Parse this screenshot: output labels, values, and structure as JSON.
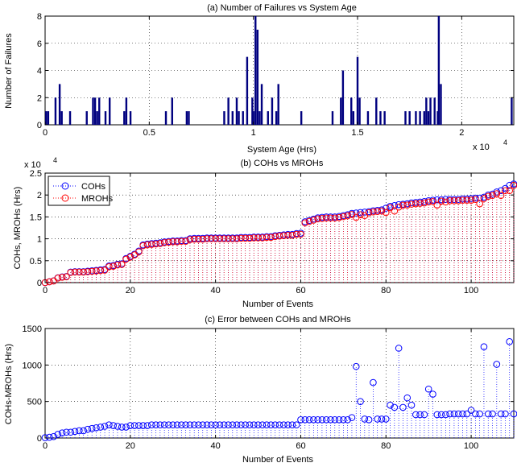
{
  "chart_data": [
    {
      "type": "bar",
      "title": "(a) Number of Failures vs System Age",
      "xlabel": "System Age (Hrs)",
      "ylabel": "Number of Failures",
      "xlim": [
        0,
        22500
      ],
      "ylim": [
        0,
        8
      ],
      "x_multiplier": "x 10",
      "x_multiplier_exp": "4",
      "xticks": [
        0,
        5000,
        10000,
        15000,
        20000
      ],
      "xtick_labels": [
        "0",
        "0.5",
        "1",
        "1.5",
        "2"
      ],
      "yticks": [
        0,
        2,
        4,
        6,
        8
      ],
      "ytick_labels": [
        "0",
        "2",
        "4",
        "6",
        "8"
      ],
      "grid": true,
      "color": "#00007f",
      "x": [
        50,
        150,
        500,
        700,
        800,
        1200,
        2000,
        2300,
        2400,
        2500,
        2600,
        2900,
        3100,
        3800,
        3900,
        4100,
        5800,
        6100,
        6800,
        6900,
        8600,
        8800,
        9000,
        9200,
        9300,
        9500,
        9700,
        9950,
        10000,
        10100,
        10200,
        10300,
        10400,
        10700,
        10900,
        11100,
        11200,
        12300,
        13800,
        14200,
        14300,
        14700,
        14800,
        15000,
        15100,
        15500,
        15900,
        16100,
        16300,
        17300,
        17500,
        17800,
        18000,
        18200,
        18300,
        18400,
        18500,
        18700,
        18850,
        18900,
        19000,
        22400
      ],
      "y": [
        1,
        1,
        2,
        3,
        1,
        1,
        1,
        2,
        2,
        1,
        2,
        1,
        2,
        1,
        2,
        1,
        1,
        2,
        1,
        1,
        1,
        2,
        1,
        2,
        1,
        1,
        5,
        2,
        1,
        8,
        7,
        1,
        3,
        1,
        2,
        1,
        3,
        1,
        1,
        2,
        4,
        2,
        1,
        5,
        2,
        1,
        2,
        1,
        1,
        1,
        1,
        1,
        1,
        1,
        2,
        1,
        2,
        2,
        1,
        8,
        3,
        2
      ]
    },
    {
      "type": "scatter",
      "title": "(b) COHs vs MROHs",
      "xlabel": "Number of Events",
      "ylabel": "COHs, MROHs (Hrs)",
      "xlim": [
        0,
        110
      ],
      "ylim": [
        0,
        25000
      ],
      "y_multiplier": "x 10",
      "y_multiplier_exp": "4",
      "xticks": [
        0,
        20,
        40,
        60,
        80,
        100
      ],
      "xtick_labels": [
        "0",
        "20",
        "40",
        "60",
        "80",
        "100"
      ],
      "yticks": [
        0,
        5000,
        10000,
        15000,
        20000,
        25000
      ],
      "ytick_labels": [
        "0",
        "0.5",
        "1",
        "1.5",
        "2",
        "2.5"
      ],
      "grid": true,
      "legend_position": "top-left",
      "series": [
        {
          "name": "COHs",
          "color": "#0000ff",
          "values": [
            0,
            200,
            400,
            1100,
            1300,
            1400,
            2400,
            2500,
            2500,
            2500,
            2600,
            2700,
            2800,
            2900,
            3000,
            3800,
            3900,
            4200,
            4300,
            5500,
            6000,
            6500,
            7200,
            8600,
            8800,
            8900,
            9000,
            9100,
            9300,
            9400,
            9500,
            9500,
            9600,
            9600,
            10000,
            10100,
            10100,
            10100,
            10200,
            10200,
            10200,
            10200,
            10200,
            10200,
            10200,
            10200,
            10300,
            10300,
            10300,
            10400,
            10400,
            10400,
            10500,
            10500,
            10700,
            10800,
            10900,
            11000,
            11000,
            11200,
            11300,
            13900,
            14200,
            14500,
            14800,
            14900,
            15000,
            15000,
            15000,
            15100,
            15300,
            15500,
            15800,
            15900,
            16000,
            16100,
            16200,
            16400,
            16500,
            16600,
            17000,
            17400,
            17600,
            17800,
            17900,
            18000,
            18200,
            18300,
            18400,
            18500,
            18700,
            18800,
            18900,
            18900,
            19000,
            19000,
            19000,
            19000,
            19100,
            19100,
            19200,
            19300,
            19300,
            19500,
            20000,
            20200,
            20700,
            21000,
            21500,
            22200,
            22500
          ]
        },
        {
          "name": "MROHs",
          "color": "#ff0000",
          "values": [
            0,
            190,
            380,
            1050,
            1230,
            1320,
            2320,
            2410,
            2400,
            2400,
            2480,
            2570,
            2660,
            2750,
            2840,
            3620,
            3730,
            4040,
            4150,
            5350,
            5830,
            6330,
            7030,
            8430,
            8630,
            8720,
            8820,
            8920,
            9120,
            9220,
            9320,
            9320,
            9420,
            9420,
            9820,
            9920,
            9920,
            9920,
            10020,
            10020,
            10020,
            10020,
            10020,
            10020,
            10020,
            10020,
            10120,
            10120,
            10120,
            10220,
            10220,
            10220,
            10320,
            10320,
            10520,
            10620,
            10720,
            10820,
            10820,
            11020,
            11050,
            13650,
            13950,
            14250,
            14550,
            14650,
            14750,
            14750,
            14750,
            14850,
            15050,
            15250,
            15550,
            14900,
            15500,
            15300,
            15950,
            16130,
            16240,
            16340,
            16000,
            17100,
            16350,
            17240,
            17680,
            17700,
            17900,
            18000,
            18100,
            18190,
            18400,
            18500,
            17700,
            18600,
            18400,
            18700,
            18700,
            18700,
            18800,
            18800,
            18800,
            19000,
            18000,
            19200,
            19700,
            19900,
            20300,
            19900,
            21000,
            21000,
            22200
          ]
        }
      ]
    },
    {
      "type": "scatter",
      "title": "(c) Error between COHs and MROHs",
      "xlabel": "Number of Events",
      "ylabel": "COHs-MROHs (Hrs)",
      "xlim": [
        0,
        110
      ],
      "ylim": [
        0,
        1500
      ],
      "xticks": [
        0,
        20,
        40,
        60,
        80,
        100
      ],
      "xtick_labels": [
        "0",
        "20",
        "40",
        "60",
        "80",
        "100"
      ],
      "yticks": [
        0,
        500,
        1000,
        1500
      ],
      "ytick_labels": [
        "0",
        "500",
        "1000",
        "1500"
      ],
      "grid": true,
      "series": [
        {
          "name": "",
          "color": "#0000ff",
          "values": [
            5,
            10,
            20,
            50,
            70,
            80,
            80,
            90,
            100,
            100,
            120,
            130,
            140,
            150,
            160,
            180,
            170,
            160,
            150,
            150,
            170,
            170,
            170,
            170,
            170,
            180,
            180,
            180,
            180,
            180,
            180,
            180,
            180,
            180,
            180,
            180,
            180,
            180,
            180,
            180,
            180,
            180,
            180,
            180,
            180,
            180,
            180,
            180,
            180,
            180,
            180,
            180,
            180,
            180,
            180,
            180,
            180,
            180,
            180,
            180,
            250,
            250,
            250,
            250,
            250,
            250,
            250,
            250,
            250,
            250,
            250,
            250,
            280,
            980,
            500,
            260,
            250,
            760,
            260,
            260,
            260,
            450,
            420,
            1230,
            420,
            550,
            450,
            320,
            320,
            320,
            670,
            600,
            320,
            320,
            320,
            330,
            330,
            330,
            330,
            330,
            380,
            330,
            330,
            1250,
            330,
            330,
            1010,
            330,
            330,
            1320,
            330
          ]
        }
      ]
    }
  ]
}
